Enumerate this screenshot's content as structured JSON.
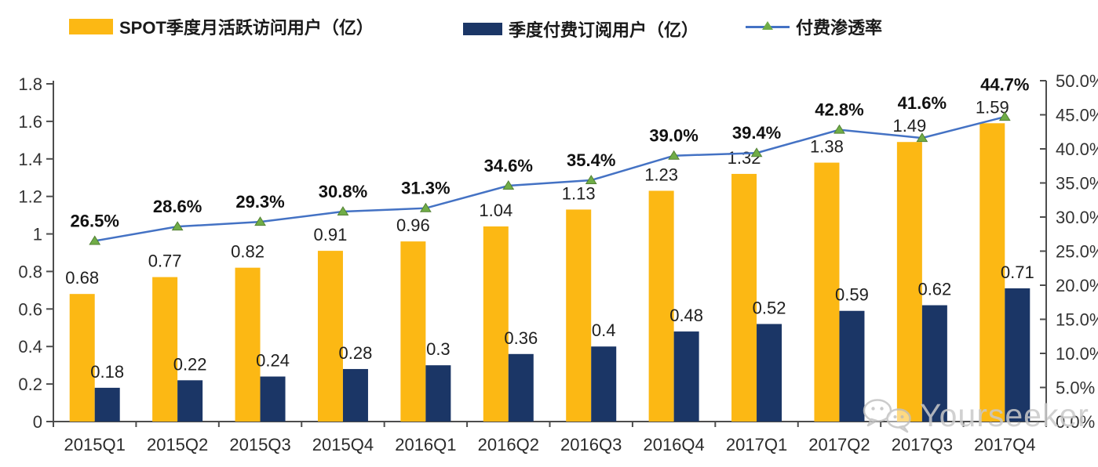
{
  "legend": [
    {
      "label": "SPOT季度月活跃访问用户（亿）",
      "color": "#FCB814",
      "type": "bar"
    },
    {
      "label": "季度付费订阅用户（亿）",
      "color": "#1B3666",
      "type": "bar"
    },
    {
      "label": "付费渗透率",
      "color": "#4472C4",
      "marker_color": "#70AD47",
      "type": "line"
    }
  ],
  "watermark": {
    "text": "Yourseeker",
    "icon": "wechat-icon"
  },
  "colors": {
    "mau_bar": "#FCB814",
    "subs_bar": "#1B3666",
    "line": "#4472C4",
    "marker_fill": "#70AD47",
    "marker_edge": "#538135",
    "axis": "#4d4d4d",
    "axis_label": "#333333",
    "bar_label": "#1f1f1f",
    "pct_label": "#111111"
  },
  "chart_data": {
    "type": "bar",
    "subtype": "grouped-bars-with-line",
    "title": "",
    "xlabel": "",
    "ylabel_left": "",
    "ylabel_right": "",
    "categories": [
      "2015Q1",
      "2015Q2",
      "2015Q3",
      "2015Q4",
      "2016Q1",
      "2016Q2",
      "2016Q3",
      "2016Q4",
      "2017Q1",
      "2017Q2",
      "2017Q3",
      "2017Q4"
    ],
    "series": [
      {
        "name": "SPOT季度月活跃访问用户（亿）",
        "type": "bar",
        "axis": "left",
        "color": "#FCB814",
        "values": [
          0.68,
          0.77,
          0.82,
          0.91,
          0.96,
          1.04,
          1.13,
          1.23,
          1.32,
          1.38,
          1.49,
          1.59
        ],
        "labels": [
          "0.68",
          "0.77",
          "0.82",
          "0.91",
          "0.96",
          "1.04",
          "1.13",
          "1.23",
          "1.32",
          "1.38",
          "1.49",
          "1.59"
        ]
      },
      {
        "name": "季度付费订阅用户（亿）",
        "type": "bar",
        "axis": "left",
        "color": "#1B3666",
        "values": [
          0.18,
          0.22,
          0.24,
          0.28,
          0.3,
          0.36,
          0.4,
          0.48,
          0.52,
          0.59,
          0.62,
          0.71
        ],
        "labels": [
          "0.18",
          "0.22",
          "0.24",
          "0.28",
          "0.3",
          "0.36",
          "0.4",
          "0.48",
          "0.52",
          "0.59",
          "0.62",
          "0.71"
        ]
      },
      {
        "name": "付费渗透率",
        "type": "line",
        "axis": "right",
        "color": "#4472C4",
        "marker": "triangle",
        "marker_color": "#70AD47",
        "values": [
          26.5,
          28.6,
          29.3,
          30.8,
          31.3,
          34.6,
          35.4,
          39.0,
          39.4,
          42.8,
          41.6,
          44.7
        ],
        "labels": [
          "26.5%",
          "28.6%",
          "29.3%",
          "30.8%",
          "31.3%",
          "34.6%",
          "35.4%",
          "39.0%",
          "39.4%",
          "42.8%",
          "41.6%",
          "44.7%"
        ]
      }
    ],
    "left_axis": {
      "min": 0,
      "max": 1.8,
      "step": 0.2,
      "tick_labels": [
        "0",
        "0.2",
        "0.4",
        "0.6",
        "0.8",
        "1",
        "1.2",
        "1.4",
        "1.6",
        "1.8"
      ]
    },
    "right_axis": {
      "min": 0,
      "max": 50,
      "step": 5,
      "tick_labels": [
        "0.0%",
        "5.0%",
        "10.0%",
        "15.0%",
        "20.0%",
        "25.0%",
        "30.0%",
        "35.0%",
        "40.0%",
        "45.0%",
        "50.0%"
      ]
    },
    "grid": false,
    "legend_position": "top"
  }
}
